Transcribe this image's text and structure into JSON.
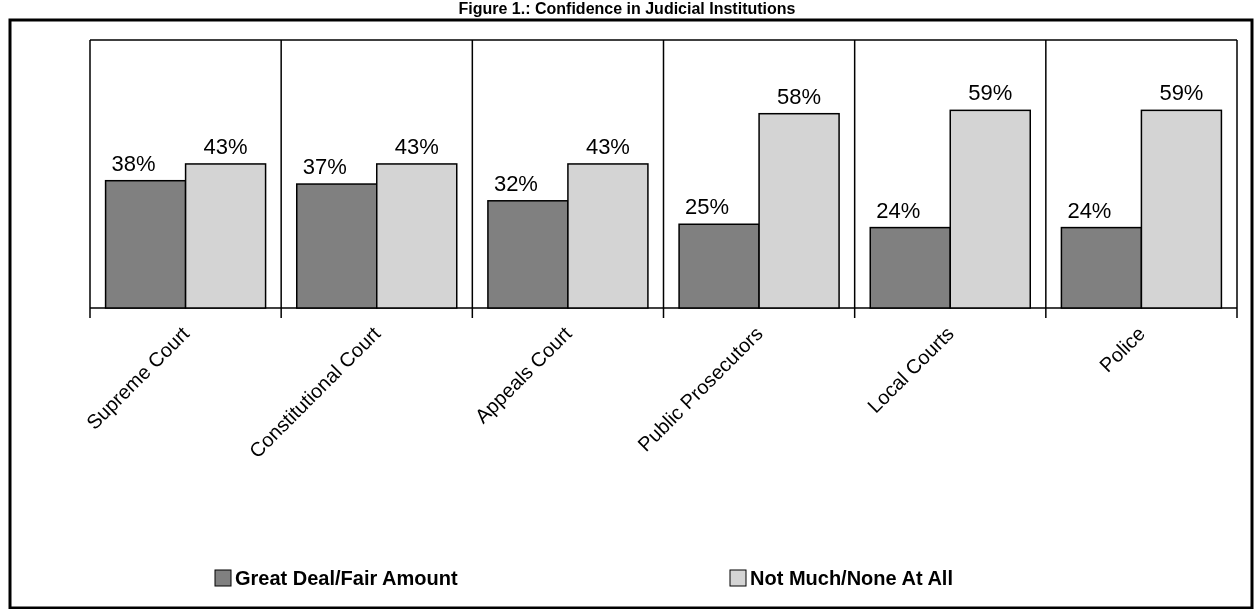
{
  "chart_data": {
    "type": "bar",
    "title": "Figure 1.: Confidence in Judicial Institutions",
    "categories": [
      "Supreme Court",
      "Constitutional Court",
      "Appeals Court",
      "Public Prosecutors",
      "Local Courts",
      "Police"
    ],
    "series": [
      {
        "name": "Great Deal/Fair Amount",
        "color": "#808080",
        "values": [
          38,
          37,
          32,
          25,
          24,
          24
        ],
        "value_labels": [
          "38%",
          "37%",
          "32%",
          "25%",
          "24%",
          "24%"
        ]
      },
      {
        "name": "Not Much/None At All",
        "color": "#d4d4d4",
        "values": [
          43,
          43,
          43,
          58,
          59,
          59
        ],
        "value_labels": [
          "43%",
          "43%",
          "43%",
          "58%",
          "59%",
          "59%"
        ]
      }
    ],
    "ylim": [
      0,
      80
    ],
    "legend": "bottom",
    "grid": false
  }
}
